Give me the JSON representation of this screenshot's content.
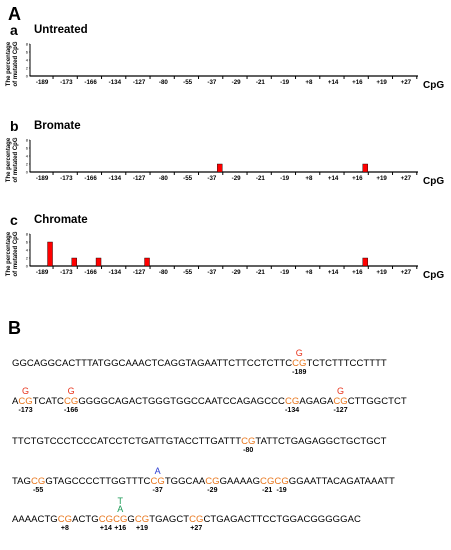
{
  "panel_A_label": "A",
  "panel_B_label": "B",
  "y_axis_label_line1": "The percentage",
  "y_axis_label_line2": "of mutated CpG",
  "x_axis_label": "CpG",
  "colors": {
    "bar": "#ff0000",
    "cg": "#e8761c",
    "mut_red": "#e8341c",
    "mut_blue": "#2a3bd1",
    "mut_green": "#1a9a55"
  },
  "chart_data": [
    {
      "type": "bar",
      "sub": "a",
      "title": "Untreated",
      "categories": [
        "-189",
        "-173",
        "-166",
        "-134",
        "-127",
        "-80",
        "-55",
        "-37",
        "-29",
        "-21",
        "-19",
        "+8",
        "+14",
        "+16",
        "+19",
        "+27"
      ],
      "values": [
        0,
        0,
        0,
        0,
        0,
        0,
        0,
        0,
        0,
        0,
        0,
        0,
        0,
        0,
        0,
        0
      ],
      "yticks": [
        "8",
        "6",
        "4",
        "2",
        "0"
      ],
      "ylim": [
        0,
        8
      ],
      "xlabel": "CpG",
      "ylabel": "The percentage of mutated CpG"
    },
    {
      "type": "bar",
      "sub": "b",
      "title": "Bromate",
      "categories": [
        "-189",
        "-173",
        "-166",
        "-134",
        "-127",
        "-80",
        "-55",
        "-37",
        "-29",
        "-21",
        "-19",
        "+8",
        "+14",
        "+16",
        "+19",
        "+27"
      ],
      "values": [
        0,
        0,
        0,
        0,
        0,
        0,
        0,
        2,
        0,
        0,
        0,
        0,
        0,
        2,
        0,
        0
      ],
      "yticks": [
        "8",
        "6",
        "4",
        "2",
        "0"
      ],
      "ylim": [
        0,
        8
      ],
      "xlabel": "CpG",
      "ylabel": "The percentage of mutated CpG"
    },
    {
      "type": "bar",
      "sub": "c",
      "title": "Chromate",
      "categories": [
        "-189",
        "-173",
        "-166",
        "-134",
        "-127",
        "-80",
        "-55",
        "-37",
        "-29",
        "-21",
        "-19",
        "+8",
        "+14",
        "+16",
        "+19",
        "+27"
      ],
      "values": [
        6,
        2,
        2,
        0,
        2,
        0,
        0,
        0,
        0,
        0,
        0,
        0,
        0,
        2,
        0,
        0
      ],
      "yticks": [
        "8",
        "6",
        "4",
        "2",
        "0"
      ],
      "ylim": [
        0,
        8
      ],
      "xlabel": "CpG",
      "ylabel": "The percentage of mutated CpG"
    }
  ],
  "sequence": {
    "line1": [
      {
        "t": "GGCAGGCACTTTATGGCAAACTCAGGTAGAATTCTTCCTCTTC"
      },
      {
        "t": "CG",
        "cg": true,
        "pos": "-189",
        "mut": "G"
      },
      {
        "t": "TCTCTTTCCTTTT"
      }
    ],
    "line2": [
      {
        "t": "A"
      },
      {
        "t": "CG",
        "cg": true,
        "pos": "-173",
        "mut": "G"
      },
      {
        "t": "TCATC"
      },
      {
        "t": "CG",
        "cg": true,
        "pos": "-166",
        "mut": "G"
      },
      {
        "t": "GGGGCAGACTGGGTGGCCAATCCAGAGCCC"
      },
      {
        "t": "CG",
        "cg": true,
        "pos": "-134"
      },
      {
        "t": "AGAGA"
      },
      {
        "t": "CG",
        "cg": true,
        "pos": "-127",
        "mut": "G"
      },
      {
        "t": "CTTGGCTCT"
      }
    ],
    "line3": [
      {
        "t": "TTCTGTCCCTCCCATCCTCTGATTGTACCTTGATTT"
      },
      {
        "t": "CG",
        "cg": true,
        "pos": "-80"
      },
      {
        "t": "TATTCTGAGAGGCTGCTGCT"
      }
    ],
    "line4": [
      {
        "t": "TAG"
      },
      {
        "t": "CG",
        "cg": true,
        "pos": "-55"
      },
      {
        "t": "GTAGCCCCTTGGTTTC"
      },
      {
        "t": "CG",
        "cg": true,
        "pos": "-37",
        "mut": "A",
        "mutcolor": "blue"
      },
      {
        "t": "TGGCAA"
      },
      {
        "t": "CG",
        "cg": true,
        "pos": "-29"
      },
      {
        "t": "GAAAAG"
      },
      {
        "t": "CG",
        "cg": true,
        "pos": "-21"
      },
      {
        "t": "CG",
        "cg": true,
        "pos": "-19"
      },
      {
        "t": "GGAATTACAGATAAATT"
      }
    ],
    "line5": [
      {
        "t": "AAAACTG"
      },
      {
        "t": "CG",
        "cg": true,
        "pos": "+8"
      },
      {
        "t": "ACTG"
      },
      {
        "t": "CG",
        "cg": true,
        "pos": "+14"
      },
      {
        "t": "CG",
        "cg": true,
        "pos": "+16",
        "mut": "T",
        "mut2": "A",
        "mutcolor": "green"
      },
      {
        "t": "G"
      },
      {
        "t": "CG",
        "cg": true,
        "pos": "+19"
      },
      {
        "t": "TGAGCT"
      },
      {
        "t": "CG",
        "cg": true,
        "pos": "+27"
      },
      {
        "t": "CTGAGACTTCCTGGACGGGGGAC"
      }
    ]
  }
}
